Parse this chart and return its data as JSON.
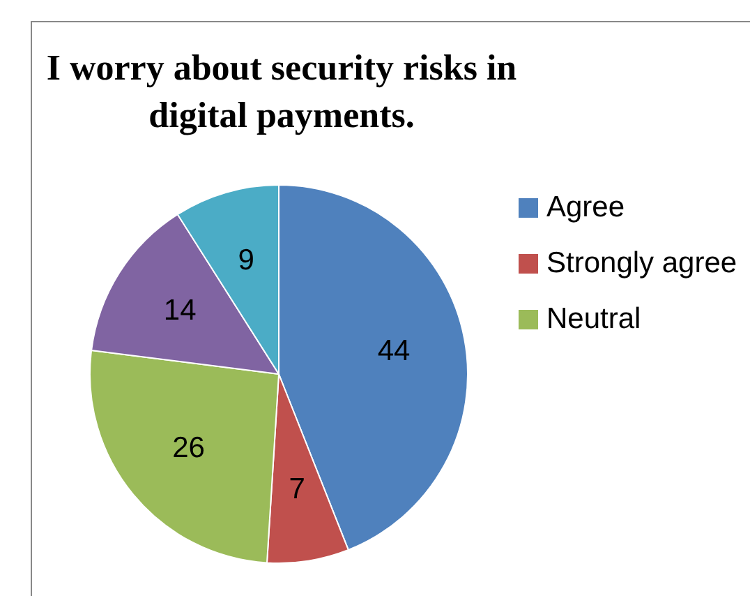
{
  "chart_data": {
    "type": "pie",
    "title": "I worry about security risks in digital payments.",
    "categories": [
      "Agree",
      "Strongly agree",
      "Neutral",
      null,
      null
    ],
    "values": [
      44,
      7,
      26,
      14,
      9
    ],
    "colors": [
      "#4f81bd",
      "#c0504d",
      "#9bbb59",
      "#8064a2",
      "#4bacc6"
    ],
    "data_labels": true,
    "legend": "right"
  }
}
